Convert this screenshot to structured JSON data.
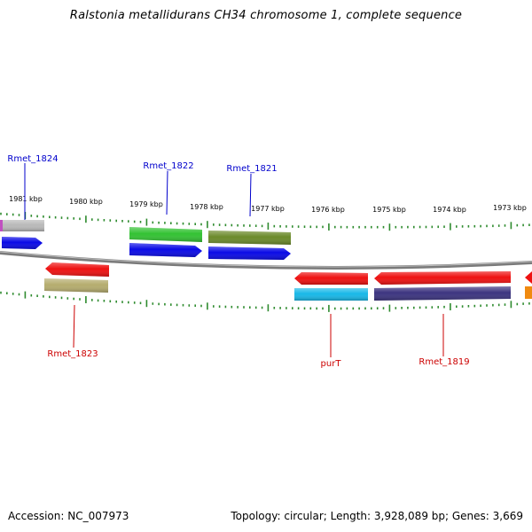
{
  "title": "Ralstonia metallidurans CH34 chromosome 1, complete sequence",
  "footer": {
    "accession": "Accession: NC_007973",
    "summary": "Topology: circular; Length: 3,928,089 bp; Genes: 3,669"
  },
  "ruler_labels": [
    "1981 kbp",
    "1980 kbp",
    "1979 kbp",
    "1978 kbp",
    "1977 kbp",
    "1976 kbp",
    "1975 kbp",
    "1974 kbp",
    "1973 kbp"
  ],
  "colors": {
    "backbone": "#7a7a7a",
    "tick": "#2e8b2e",
    "forward_label": "#0000cc",
    "reverse_label": "#cc0000"
  },
  "forward_gene_labels": [
    "Rmet_1824",
    "Rmet_1822",
    "Rmet_1821"
  ],
  "reverse_gene_labels": [
    "Rmet_1823",
    "purT",
    "Rmet_1819"
  ]
}
